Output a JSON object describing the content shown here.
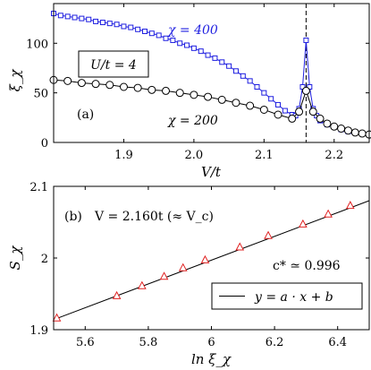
{
  "chart_data": [
    {
      "type": "line",
      "panel_label": "(a)",
      "xlabel": "V/t",
      "ylabel": "ξ_χ",
      "xlim": [
        1.8,
        2.25
      ],
      "ylim": [
        0,
        140
      ],
      "xticks": [
        1.9,
        2.0,
        2.1,
        2.2
      ],
      "yticks": [
        0,
        50,
        100
      ],
      "box_annotation": "U/t = 4",
      "vline_x": 2.16,
      "series": [
        {
          "name": "χ = 400",
          "color": "#1f1fe0",
          "marker": "square",
          "x": [
            1.8,
            1.81,
            1.82,
            1.83,
            1.84,
            1.85,
            1.86,
            1.87,
            1.88,
            1.89,
            1.9,
            1.91,
            1.92,
            1.93,
            1.94,
            1.95,
            1.96,
            1.97,
            1.98,
            1.99,
            2.0,
            2.01,
            2.02,
            2.03,
            2.04,
            2.05,
            2.06,
            2.07,
            2.08,
            2.09,
            2.1,
            2.11,
            2.12,
            2.13,
            2.14,
            2.145,
            2.15,
            2.155,
            2.16,
            2.165,
            2.17,
            2.175,
            2.18,
            2.19,
            2.2,
            2.21,
            2.22,
            2.23,
            2.24,
            2.25
          ],
          "y": [
            130,
            128,
            127,
            126,
            125,
            124,
            122,
            121,
            120,
            119,
            117,
            116,
            114,
            112,
            110,
            108,
            105,
            103,
            100,
            98,
            95,
            92,
            88,
            85,
            81,
            77,
            72,
            67,
            62,
            56,
            50,
            44,
            38,
            32,
            28,
            27,
            34,
            56,
            103,
            56,
            34,
            27,
            22,
            18,
            16,
            13,
            11,
            10,
            9,
            8
          ]
        },
        {
          "name": "χ = 200",
          "color": "#000000",
          "marker": "circle",
          "x": [
            1.8,
            1.82,
            1.84,
            1.86,
            1.88,
            1.9,
            1.92,
            1.94,
            1.96,
            1.98,
            2.0,
            2.02,
            2.04,
            2.06,
            2.08,
            2.1,
            2.12,
            2.14,
            2.15,
            2.16,
            2.17,
            2.18,
            2.19,
            2.2,
            2.21,
            2.22,
            2.23,
            2.24,
            2.25
          ],
          "y": [
            63,
            62,
            60,
            59,
            58,
            56,
            55,
            53,
            52,
            50,
            48,
            46,
            43,
            40,
            37,
            33,
            28,
            24,
            31,
            52,
            31,
            24,
            19,
            16,
            14,
            12,
            10,
            9,
            8
          ]
        }
      ]
    },
    {
      "type": "scatter",
      "panel_label": "(b)",
      "title": "V = 2.160t (≈ V_c)",
      "xlabel": "ln ξ_χ",
      "ylabel": "S_χ",
      "xlim": [
        5.5,
        6.5
      ],
      "ylim": [
        1.9,
        2.1
      ],
      "xticks": [
        5.6,
        5.8,
        6.0,
        6.2,
        6.4
      ],
      "yticks": [
        1.9,
        2.0,
        2.1
      ],
      "central_charge_label": "c* ≃ 0.996",
      "fit_legend": "y = a · x + b",
      "fit_line": {
        "x": [
          5.5,
          6.5
        ],
        "y": [
          1.914,
          2.08
        ]
      },
      "points": {
        "color": "#e02020",
        "marker": "triangle",
        "x": [
          5.51,
          5.7,
          5.78,
          5.85,
          5.91,
          5.98,
          6.09,
          6.18,
          6.29,
          6.37,
          6.44
        ],
        "y": [
          1.916,
          1.947,
          1.961,
          1.974,
          1.986,
          1.997,
          2.015,
          2.031,
          2.047,
          2.061,
          2.073
        ]
      }
    }
  ]
}
